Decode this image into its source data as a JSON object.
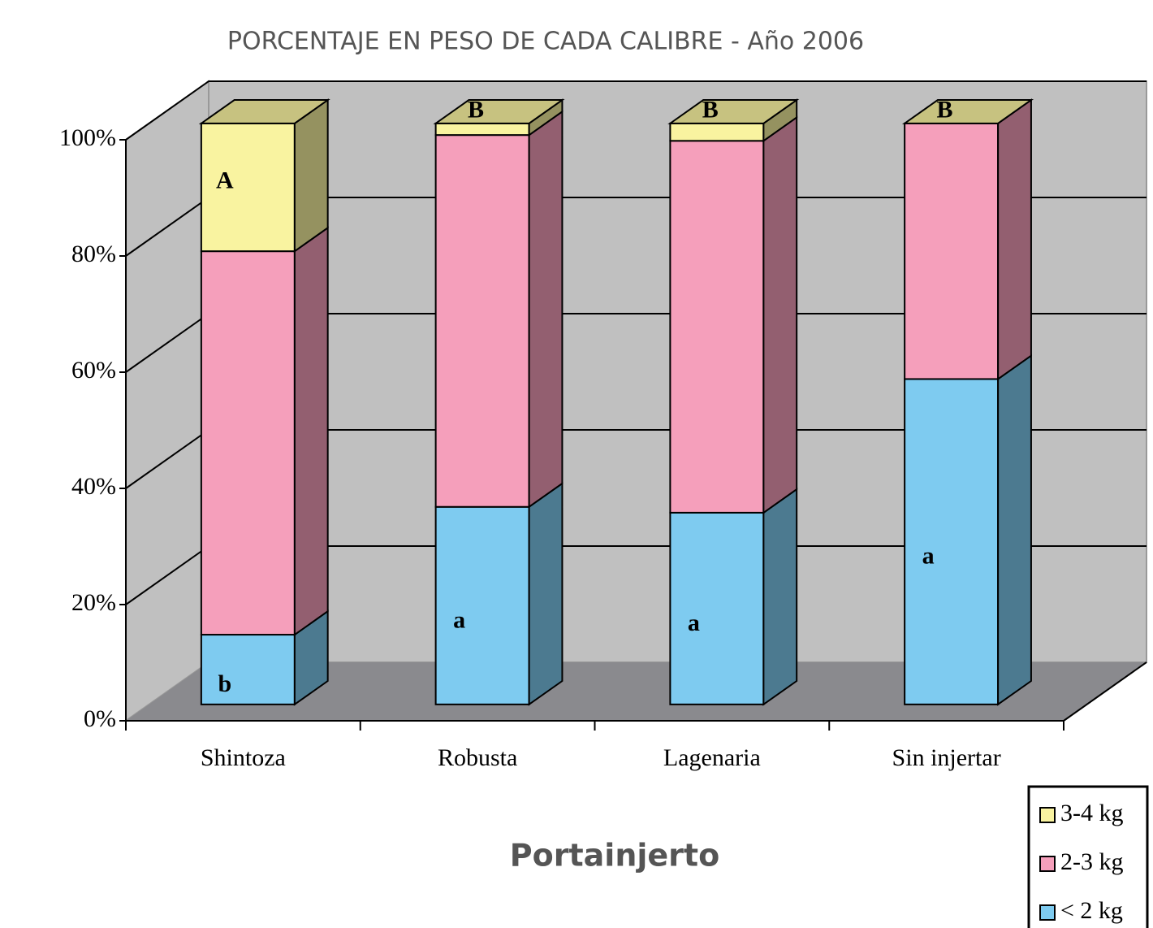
{
  "chart_data": {
    "type": "bar3d_stacked",
    "title": "PORCENTAJE EN PESO DE CADA CALIBRE - Año 2006",
    "x_label": "Portainjerto",
    "categories": [
      "Shintoza",
      "Robusta",
      "Lagenaria",
      "Sin injertar"
    ],
    "series": [
      {
        "name": "< 2 kg",
        "color": "#7ecbf0",
        "values": [
          12,
          34,
          33,
          56
        ],
        "letters": [
          "b",
          "a",
          "a",
          "a"
        ]
      },
      {
        "name": "2-3 kg",
        "color": "#f59fbb",
        "values": [
          66,
          64,
          64,
          44
        ]
      },
      {
        "name": "3-4 kg",
        "color": "#f9f3a0",
        "values": [
          22,
          2,
          3,
          0
        ],
        "letters": [
          "A",
          "B",
          "B",
          "B"
        ]
      }
    ],
    "ylim": [
      0,
      100
    ],
    "yticks": [
      {
        "value": 0,
        "label": "0%"
      },
      {
        "value": 20,
        "label": "20%"
      },
      {
        "value": 40,
        "label": "40%"
      },
      {
        "value": 60,
        "label": "60%"
      },
      {
        "value": 80,
        "label": "80%"
      },
      {
        "value": 100,
        "label": "100%"
      }
    ],
    "grid": true,
    "legend": "bottom-right"
  }
}
